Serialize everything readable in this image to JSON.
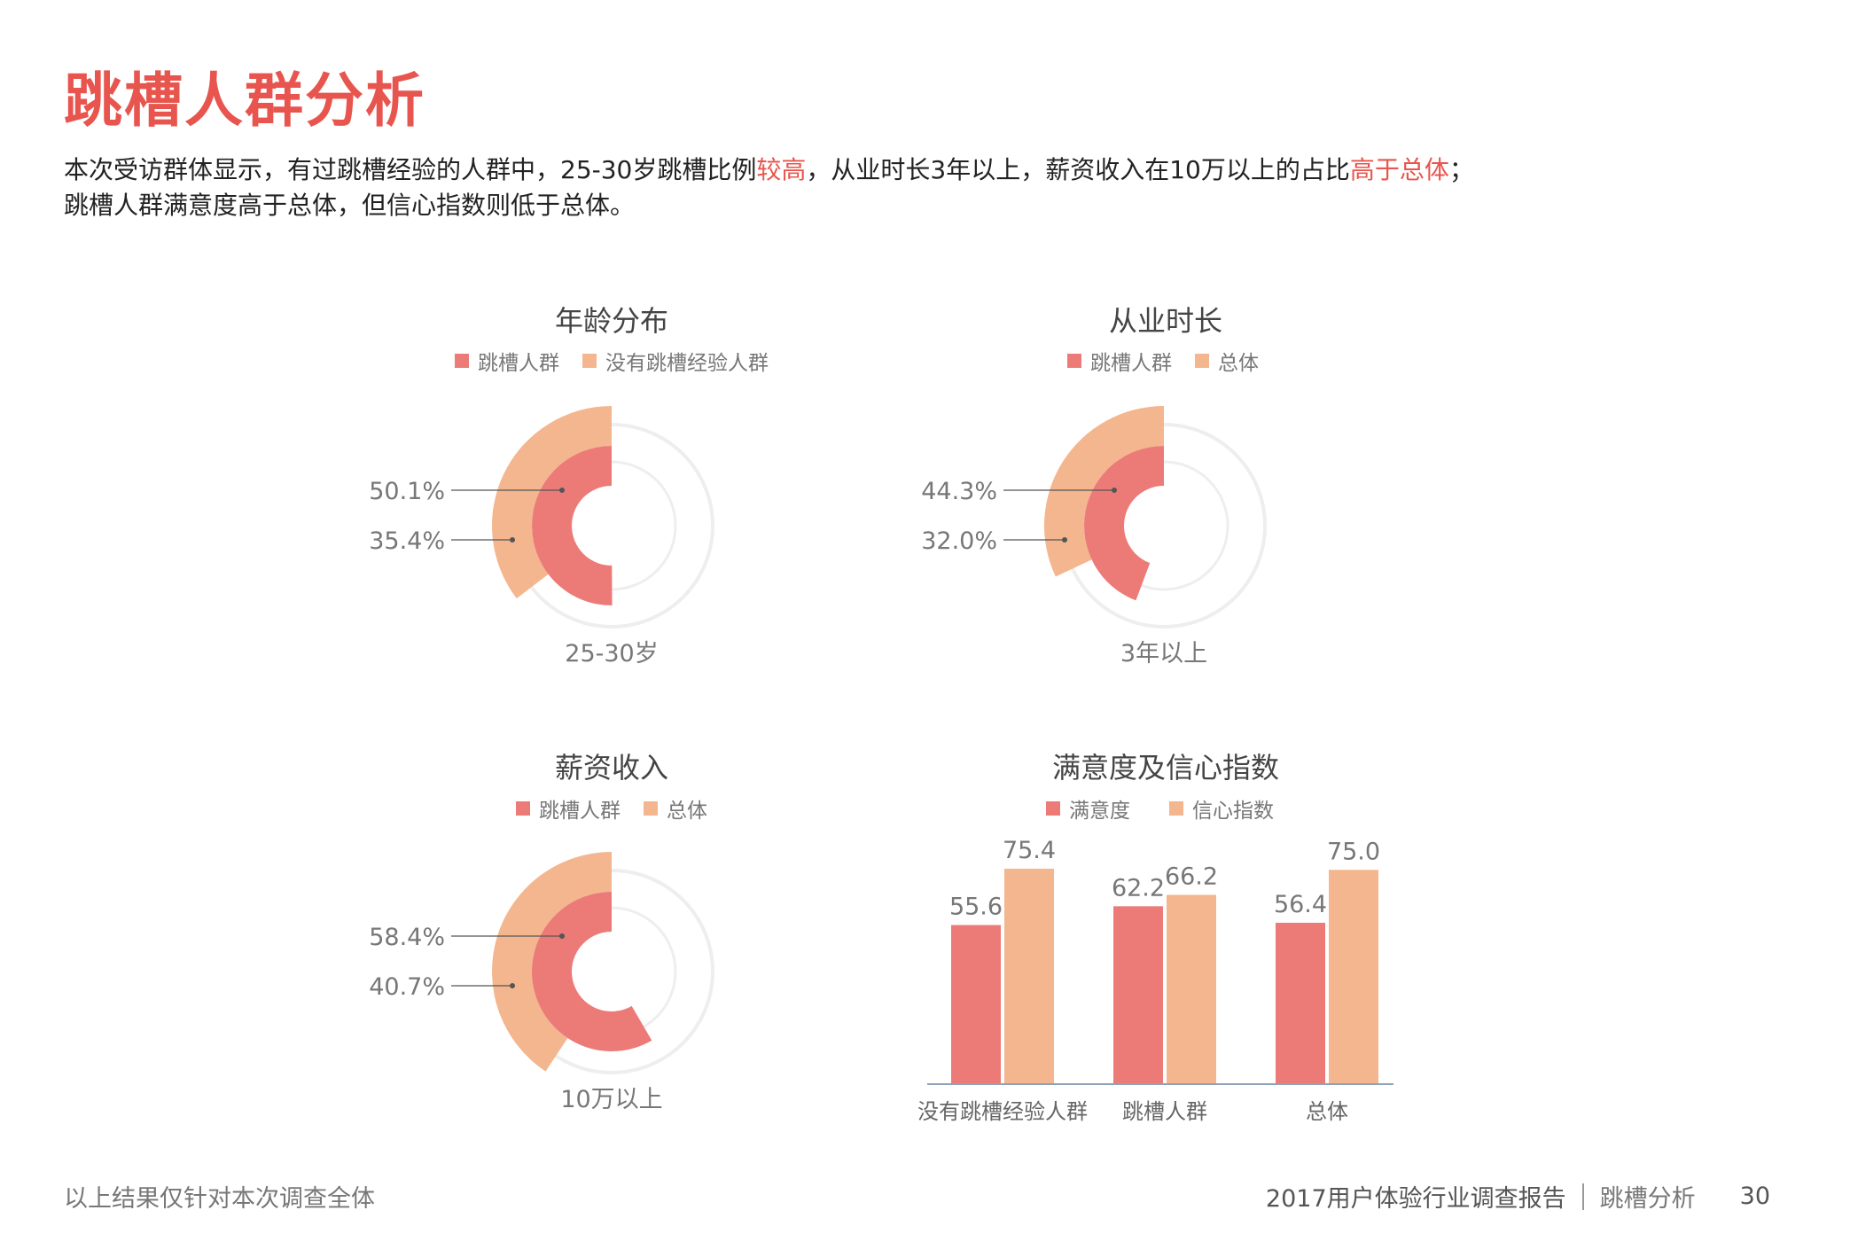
{
  "page": {
    "title": "跳槽人群分析",
    "desc_part1": "本次受访群体显示，有过跳槽经验的人群中，25-30岁跳槽比例",
    "desc_hl1": "较高",
    "desc_part2": "，从业时长3年以上，薪资收入在10万以上的占比",
    "desc_hl2": "高于总体",
    "desc_part3": "；",
    "desc_line2": "跳槽人群满意度高于总体，但信心指数则低于总体。",
    "footer_note": "以上结果仅针对本次调查全体",
    "footer_report": "2017用户体验行业调查报告",
    "footer_section": "跳槽分析",
    "page_number": "30"
  },
  "colors": {
    "primary": "#ec7b78",
    "secondary": "#f4b68e",
    "track": "#eeeeee",
    "title_red": "#e8554e"
  },
  "chart_data": [
    {
      "type": "radial-bar",
      "title": "年龄分布",
      "legend": [
        "跳槽人群",
        "没有跳槽经验人群"
      ],
      "category": "25-30岁",
      "series": [
        {
          "name": "跳槽人群",
          "value": 50.1,
          "label": "50.1%"
        },
        {
          "name": "没有跳槽经验人群",
          "value": 35.4,
          "label": "35.4%"
        }
      ]
    },
    {
      "type": "radial-bar",
      "title": "从业时长",
      "legend": [
        "跳槽人群",
        "总体"
      ],
      "category": "3年以上",
      "series": [
        {
          "name": "跳槽人群",
          "value": 44.3,
          "label": "44.3%"
        },
        {
          "name": "总体",
          "value": 32.0,
          "label": "32.0%"
        }
      ]
    },
    {
      "type": "radial-bar",
      "title": "薪资收入",
      "legend": [
        "跳槽人群",
        "总体"
      ],
      "category": "10万以上",
      "series": [
        {
          "name": "跳槽人群",
          "value": 58.4,
          "label": "58.4%"
        },
        {
          "name": "总体",
          "value": 40.7,
          "label": "40.7%"
        }
      ]
    },
    {
      "type": "bar",
      "title": "满意度及信心指数",
      "legend": [
        "满意度",
        "信心指数"
      ],
      "categories": [
        "没有跳槽经验人群",
        "跳槽人群",
        "总体"
      ],
      "series": [
        {
          "name": "满意度",
          "values": [
            55.6,
            62.2,
            56.4
          ],
          "labels": [
            "55.6",
            "62.2",
            "56.4"
          ]
        },
        {
          "name": "信心指数",
          "values": [
            75.4,
            66.2,
            75.0
          ],
          "labels": [
            "75.4",
            "66.2",
            "75.0"
          ]
        }
      ],
      "ylim": [
        0,
        100
      ]
    }
  ]
}
